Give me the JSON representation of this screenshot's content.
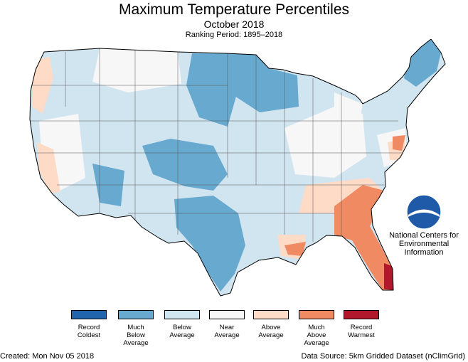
{
  "header": {
    "title": "Maximum Temperature Percentiles",
    "subtitle": "October 2018",
    "ranking_period": "Ranking Period: 1895–2018"
  },
  "map": {
    "region": "contiguous United States",
    "dominant_categories": {
      "northern_plains_upper_midwest": "Much Below Average",
      "texas_and_southern_rockies": "Much Below Average",
      "maine": "Much Below Average",
      "southeast_and_florida": "Much Above Average",
      "south_florida": "Record Warmest",
      "pacific_coast": "Above Average"
    }
  },
  "legend": {
    "items": [
      {
        "label": "Record\nColdest",
        "color": "#2166ac"
      },
      {
        "label": "Much\nBelow\nAverage",
        "color": "#67a9cf"
      },
      {
        "label": "Below\nAverage",
        "color": "#d1e5f0"
      },
      {
        "label": "Near\nAverage",
        "color": "#f7f7f7"
      },
      {
        "label": "Above\nAverage",
        "color": "#fddbc7"
      },
      {
        "label": "Much\nAbove\nAverage",
        "color": "#ef8a62"
      },
      {
        "label": "Record\nWarmest",
        "color": "#b2182b"
      }
    ]
  },
  "branding": {
    "logo_icon": "noaa-logo",
    "agency": "National Centers for\nEnvironmental\nInformation"
  },
  "footer": {
    "created": "Created: Mon Nov 05 2018",
    "source": "Data Source: 5km Gridded Dataset (nClimGrid)"
  }
}
